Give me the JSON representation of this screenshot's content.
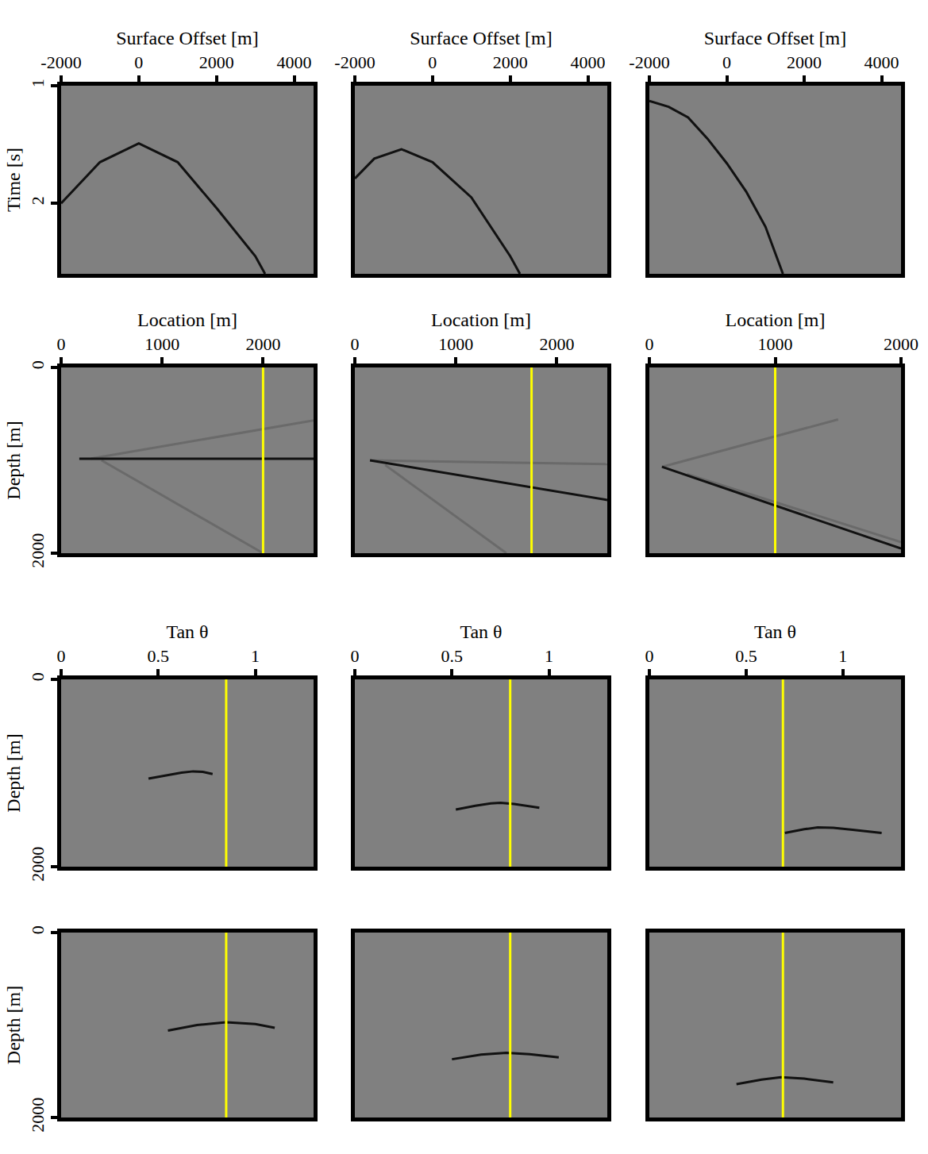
{
  "chart_data": [
    {
      "type": "line",
      "x_label": "Surface Offset [m]",
      "y_label": "Time [s]",
      "xlim": [
        -2000,
        4500
      ],
      "ylim": [
        1,
        2.6
      ],
      "xticks": [
        -2000,
        0,
        2000,
        4000
      ],
      "yticks": [
        1,
        2
      ],
      "series": [
        {
          "color": "#111111",
          "x": [
            -2000,
            -1000,
            0,
            1000,
            2000,
            3000,
            3250
          ],
          "y": [
            2.0,
            1.65,
            1.49,
            1.65,
            2.04,
            2.45,
            2.6
          ]
        }
      ]
    },
    {
      "type": "line",
      "x_label": "Surface Offset [m]",
      "xlim": [
        -2000,
        4500
      ],
      "ylim": [
        1,
        2.6
      ],
      "xticks": [
        -2000,
        0,
        2000,
        4000
      ],
      "tick_labels": "x",
      "series": [
        {
          "color": "#111111",
          "x": [
            -2000,
            -1500,
            -800,
            0,
            1000,
            2000,
            2250
          ],
          "y": [
            1.79,
            1.62,
            1.54,
            1.65,
            1.95,
            2.45,
            2.6
          ]
        }
      ]
    },
    {
      "type": "line",
      "x_label": "Surface Offset [m]",
      "xlim": [
        -2000,
        4500
      ],
      "ylim": [
        1,
        2.6
      ],
      "xticks": [
        -2000,
        0,
        2000,
        4000
      ],
      "tick_labels": "x",
      "series": [
        {
          "color": "#111111",
          "x": [
            -2000,
            -1500,
            -1000,
            -500,
            0,
            500,
            1000,
            1450
          ],
          "y": [
            1.13,
            1.18,
            1.27,
            1.45,
            1.66,
            1.9,
            2.2,
            2.6
          ]
        }
      ]
    },
    {
      "type": "line",
      "x_label": "Location [m]",
      "y_label": "Depth [m]",
      "xlim": [
        0,
        2500
      ],
      "ylim": [
        0,
        2000
      ],
      "xticks": [
        0,
        1000,
        2000
      ],
      "yticks": [
        0,
        2000
      ],
      "series": [
        {
          "color": "#6a6a6a",
          "x": [
            300,
            2500
          ],
          "y": [
            980,
            570
          ]
        },
        {
          "color": "#6a6a6a",
          "x": [
            400,
            2000
          ],
          "y": [
            1000,
            2000
          ]
        },
        {
          "color": "#111111",
          "x": [
            180,
            2500
          ],
          "y": [
            983,
            983
          ]
        },
        {
          "color": "#ffff00",
          "x": [
            2000,
            2000
          ],
          "y": [
            0,
            2000
          ]
        }
      ]
    },
    {
      "type": "line",
      "x_label": "Location [m]",
      "xlim": [
        0,
        2500
      ],
      "ylim": [
        0,
        2000
      ],
      "xticks": [
        0,
        1000,
        2000
      ],
      "tick_labels": "x",
      "series": [
        {
          "color": "#6a6a6a",
          "x": [
            150,
            2500
          ],
          "y": [
            1000,
            1040
          ]
        },
        {
          "color": "#6a6a6a",
          "x": [
            300,
            1500
          ],
          "y": [
            1050,
            2000
          ]
        },
        {
          "color": "#111111",
          "x": [
            150,
            2500
          ],
          "y": [
            1000,
            1427
          ]
        },
        {
          "color": "#ffff00",
          "x": [
            1750,
            1750
          ],
          "y": [
            0,
            2000
          ]
        }
      ]
    },
    {
      "type": "line",
      "x_label": "Location [m]",
      "xlim": [
        0,
        2000
      ],
      "ylim": [
        0,
        2000
      ],
      "xticks": [
        0,
        1000,
        2000
      ],
      "tick_labels": "x",
      "series": [
        {
          "color": "#6a6a6a",
          "x": [
            100,
            1500
          ],
          "y": [
            1070,
            560
          ]
        },
        {
          "color": "#6a6a6a",
          "x": [
            300,
            2000
          ],
          "y": [
            1150,
            1880
          ]
        },
        {
          "color": "#111111",
          "x": [
            100,
            2000
          ],
          "y": [
            1070,
            1950
          ]
        },
        {
          "color": "#ffff00",
          "x": [
            1000,
            1000
          ],
          "y": [
            0,
            2000
          ]
        }
      ]
    },
    {
      "type": "line",
      "x_label": "Tan θ",
      "y_label": "Depth [m]",
      "xlim": [
        0,
        1.3
      ],
      "ylim": [
        0,
        2000
      ],
      "xticks": [
        0,
        0.5,
        1
      ],
      "yticks": [
        0,
        2000
      ],
      "series": [
        {
          "color": "#111111",
          "x": [
            0.45,
            0.55,
            0.62,
            0.68,
            0.73,
            0.78
          ],
          "y": [
            1060,
            1025,
            995,
            982,
            988,
            1010
          ]
        },
        {
          "color": "#ffff00",
          "x": [
            0.85,
            0.85
          ],
          "y": [
            0,
            2000
          ]
        }
      ]
    },
    {
      "type": "line",
      "x_label": "Tan θ",
      "xlim": [
        0,
        1.3
      ],
      "ylim": [
        0,
        2000
      ],
      "xticks": [
        0,
        0.5,
        1
      ],
      "tick_labels": "x",
      "series": [
        {
          "color": "#111111",
          "x": [
            0.52,
            0.62,
            0.7,
            0.75,
            0.82,
            0.95
          ],
          "y": [
            1390,
            1350,
            1325,
            1318,
            1330,
            1370
          ]
        },
        {
          "color": "#ffff00",
          "x": [
            0.8,
            0.8
          ],
          "y": [
            0,
            2000
          ]
        }
      ]
    },
    {
      "type": "line",
      "x_label": "Tan θ",
      "xlim": [
        0,
        1.3
      ],
      "ylim": [
        0,
        2000
      ],
      "xticks": [
        0,
        0.5,
        1
      ],
      "tick_labels": "x",
      "series": [
        {
          "color": "#111111",
          "x": [
            0.7,
            0.8,
            0.87,
            0.95,
            1.05,
            1.2
          ],
          "y": [
            1640,
            1600,
            1580,
            1585,
            1605,
            1640
          ]
        },
        {
          "color": "#ffff00",
          "x": [
            0.69,
            0.69
          ],
          "y": [
            0,
            2000
          ]
        }
      ]
    },
    {
      "type": "line",
      "y_label": "Depth [m]",
      "xlim": [
        0,
        1.3
      ],
      "ylim": [
        0,
        2000
      ],
      "yticks": [
        0,
        2000
      ],
      "tick_labels": "y",
      "series": [
        {
          "color": "#111111",
          "x": [
            0.55,
            0.7,
            0.85,
            1.0,
            1.1
          ],
          "y": [
            1060,
            1000,
            970,
            990,
            1030
          ]
        },
        {
          "color": "#ffff00",
          "x": [
            0.85,
            0.85
          ],
          "y": [
            0,
            2000
          ]
        }
      ]
    },
    {
      "type": "line",
      "xlim": [
        0,
        1.3
      ],
      "ylim": [
        0,
        2000
      ],
      "tick_labels": false,
      "series": [
        {
          "color": "#111111",
          "x": [
            0.5,
            0.65,
            0.78,
            0.9,
            1.05
          ],
          "y": [
            1370,
            1320,
            1300,
            1315,
            1350
          ]
        },
        {
          "color": "#ffff00",
          "x": [
            0.8,
            0.8
          ],
          "y": [
            0,
            2000
          ]
        }
      ]
    },
    {
      "type": "line",
      "xlim": [
        0,
        1.3
      ],
      "ylim": [
        0,
        2000
      ],
      "tick_labels": false,
      "series": [
        {
          "color": "#111111",
          "x": [
            0.45,
            0.58,
            0.68,
            0.8,
            0.95
          ],
          "y": [
            1640,
            1590,
            1565,
            1580,
            1620
          ]
        },
        {
          "color": "#ffff00",
          "x": [
            0.69,
            0.69
          ],
          "y": [
            0,
            2000
          ]
        }
      ]
    }
  ]
}
